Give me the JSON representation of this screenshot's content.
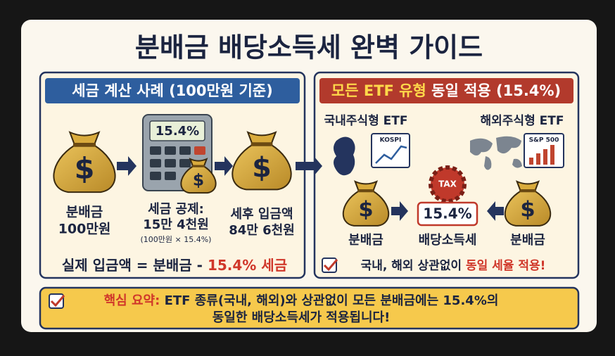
{
  "title": "분배금 배당소득세 완벽 가이드",
  "dollar_sign": "$",
  "left_panel": {
    "header": "세금 계산 사례 (100만원 기준)",
    "calculator_display": "15.4%",
    "steps": [
      {
        "lines": [
          "분배금",
          "100만원"
        ]
      },
      {
        "lines": [
          "세금 공제:",
          "15만 4천원"
        ],
        "note": "(100만원 × 15.4%)"
      },
      {
        "lines": [
          "세후 입금액",
          "84만 6천원"
        ]
      }
    ],
    "formula": {
      "text": "실제 입금액 = 분배금 - ",
      "highlight": "15.4% 세금"
    }
  },
  "right_panel": {
    "header": {
      "highlight": "모든 ETF 유형",
      "text": " 동일 적용 (15.4%)"
    },
    "domestic": {
      "label": "국내주식형 ETF",
      "index": "KOSPI"
    },
    "foreign": {
      "label": "해외주식형 ETF",
      "index": "S&P 500"
    },
    "tax_badge": "TAX",
    "rate_box": "15.4%",
    "left_bag_label": "분배금",
    "center_label": "배당소득세",
    "right_bag_label": "분배금",
    "check": {
      "text": "국내, 해외 상관없이 ",
      "highlight": "동일 세율 적용!"
    }
  },
  "summary": {
    "label": "핵심 요약:",
    "line1": " ETF 종류(국내, 해외)와 상관없이 모든 분배금에는 15.4%의",
    "line2": "동일한 배당소득세가 적용됩니다!"
  }
}
